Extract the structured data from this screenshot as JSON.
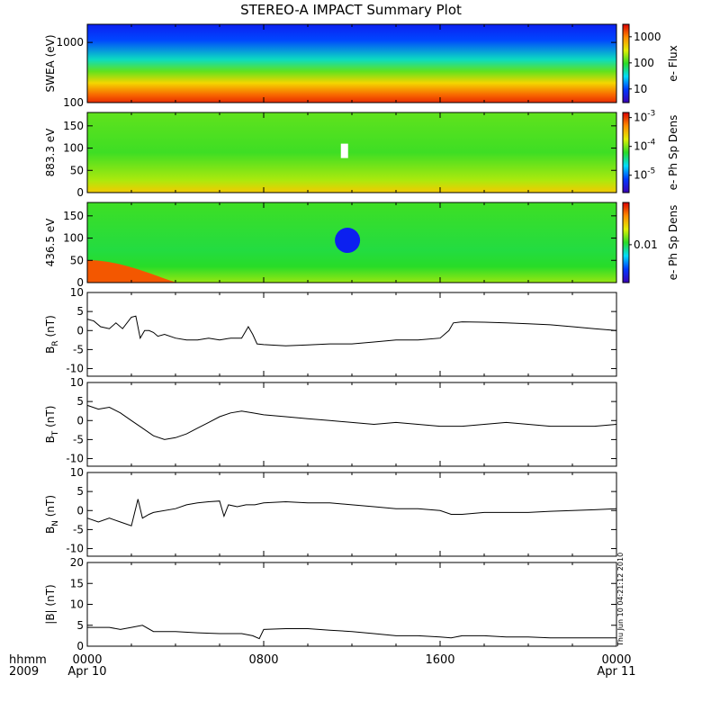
{
  "title": "STEREO-A IMPACT Summary Plot",
  "footer": {
    "time_label": "hhmm",
    "year_label": "2009"
  },
  "timestamp": "Thu Jun 10 04:21:12 2010",
  "colors": {
    "line": "#000000",
    "frame": "#000000",
    "background": "#ffffff"
  },
  "chart_data": [
    {
      "type": "heatmap",
      "panel": "swea",
      "ylabel": "SWEA (eV)",
      "y_scale": "log",
      "ylim": [
        100,
        2000
      ],
      "ytick_labels": [
        "1000",
        "100"
      ],
      "ytick_values": [
        1000,
        100
      ],
      "colorbar": {
        "label": "e- Flux",
        "scale": "log",
        "range": [
          3,
          3000
        ],
        "tick_labels": [
          "1000",
          "100",
          "10"
        ],
        "tick_values": [
          1000,
          100,
          10
        ]
      }
    },
    {
      "type": "heatmap",
      "panel": "pad_883",
      "ylabel": "883.3 eV",
      "ylim": [
        0,
        180
      ],
      "ytick_labels": [
        "150",
        "100",
        "50",
        "0"
      ],
      "ytick_values": [
        150,
        100,
        50,
        0
      ],
      "colorbar": {
        "label": "e- Ph Sp Dens",
        "scale": "log",
        "range": [
          2.5e-06,
          0.0015
        ],
        "tick_labels": [
          "10",
          "10",
          "10"
        ],
        "tick_exponents": [
          "-3",
          "-4",
          "-5"
        ],
        "tick_values": [
          0.001,
          0.0001,
          1e-05
        ]
      }
    },
    {
      "type": "heatmap",
      "panel": "pad_436",
      "ylabel": "436.5 eV",
      "ylim": [
        0,
        180
      ],
      "ytick_labels": [
        "150",
        "100",
        "50",
        "0"
      ],
      "ytick_values": [
        150,
        100,
        50,
        0
      ],
      "colorbar": {
        "label": "e- Ph Sp Dens",
        "scale": "log",
        "range": [
          0.002,
          0.06
        ],
        "tick_labels": [
          "0.01"
        ],
        "tick_values": [
          0.01
        ]
      }
    },
    {
      "type": "line",
      "panel": "br",
      "ylabel": "B",
      "ylabel_sub": "R",
      "ylabel_unit": "(nT)",
      "ylim": [
        -12,
        10
      ],
      "ytick_labels": [
        "10",
        "5",
        "0",
        "-5",
        "-10"
      ],
      "ytick_values": [
        10,
        5,
        0,
        -5,
        -10
      ],
      "x": [
        0,
        0.3,
        0.6,
        1,
        1.3,
        1.6,
        2,
        2.2,
        2.4,
        2.6,
        2.8,
        3,
        3.2,
        3.5,
        4,
        4.5,
        5,
        5.5,
        6,
        6.5,
        7,
        7.3,
        7.5,
        7.7,
        8,
        9,
        10,
        11,
        12,
        13,
        14,
        15,
        16,
        16.4,
        16.6,
        17,
        18,
        19,
        20,
        21,
        22,
        23,
        24
      ],
      "y": [
        3,
        2.5,
        1,
        0.5,
        2,
        0.5,
        3.5,
        3.8,
        -2,
        0,
        0,
        -0.5,
        -1.5,
        -1,
        -2,
        -2.5,
        -2.5,
        -2,
        -2.5,
        -2,
        -2,
        1,
        -1,
        -3.5,
        -3.7,
        -4,
        -3.8,
        -3.5,
        -3.5,
        -3,
        -2.5,
        -2.5,
        -2,
        0,
        2,
        2.3,
        2.2,
        2,
        1.8,
        1.5,
        1,
        0.5,
        0
      ]
    },
    {
      "type": "line",
      "panel": "bt",
      "ylabel": "B",
      "ylabel_sub": "T",
      "ylabel_unit": "(nT)",
      "ylim": [
        -12,
        10
      ],
      "ytick_labels": [
        "10",
        "5",
        "0",
        "-5",
        "-10"
      ],
      "ytick_values": [
        10,
        5,
        0,
        -5,
        -10
      ],
      "x": [
        0,
        0.5,
        1,
        1.5,
        2,
        2.5,
        3,
        3.5,
        4,
        4.5,
        5,
        5.5,
        6,
        6.5,
        7,
        7.5,
        8,
        9,
        10,
        11,
        12,
        13,
        14,
        15,
        16,
        17,
        18,
        19,
        20,
        21,
        22,
        23,
        24
      ],
      "y": [
        4,
        3,
        3.5,
        2,
        0,
        -2,
        -4,
        -5,
        -4.5,
        -3.5,
        -2,
        -0.5,
        1,
        2,
        2.5,
        2,
        1.5,
        1,
        0.5,
        0,
        -0.5,
        -1,
        -0.5,
        -1,
        -1.5,
        -1.5,
        -1,
        -0.5,
        -1,
        -1.5,
        -1.5,
        -1.5,
        -1
      ]
    },
    {
      "type": "line",
      "panel": "bn",
      "ylabel": "B",
      "ylabel_sub": "N",
      "ylabel_unit": "(nT)",
      "ylim": [
        -12,
        10
      ],
      "ytick_labels": [
        "10",
        "5",
        "0",
        "-5",
        "-10"
      ],
      "ytick_values": [
        10,
        5,
        0,
        -5,
        -10
      ],
      "x": [
        0,
        0.5,
        1,
        1.5,
        2,
        2.3,
        2.5,
        2.8,
        3,
        4,
        4.5,
        5,
        5.5,
        6,
        6.2,
        6.4,
        6.8,
        7.2,
        7.6,
        8,
        9,
        10,
        11,
        12,
        13,
        14,
        15,
        16,
        16.5,
        17,
        18,
        19,
        20,
        21,
        22,
        23,
        24
      ],
      "y": [
        -2,
        -3,
        -2,
        -3,
        -4,
        3,
        -2,
        -1,
        -0.5,
        0.5,
        1.5,
        2,
        2.3,
        2.5,
        -1.5,
        1.5,
        1,
        1.5,
        1.5,
        2,
        2.3,
        2,
        2,
        1.5,
        1,
        0.5,
        0.5,
        0,
        -1,
        -1,
        -0.5,
        -0.5,
        -0.5,
        -0.2,
        0,
        0.2,
        0.5
      ]
    },
    {
      "type": "line",
      "panel": "bmag",
      "ylabel": "|B| (nT)",
      "ylim": [
        0,
        20
      ],
      "ytick_labels": [
        "20",
        "15",
        "10",
        "5",
        "0"
      ],
      "ytick_values": [
        20,
        15,
        10,
        5,
        0
      ],
      "x": [
        0,
        1,
        1.5,
        2,
        2.5,
        3,
        4,
        5,
        6,
        7,
        7.5,
        7.8,
        8,
        9,
        10,
        11,
        12,
        13,
        14,
        15,
        16,
        16.5,
        17,
        18,
        19,
        20,
        21,
        22,
        23,
        24
      ],
      "y": [
        4.5,
        4.5,
        4,
        4.5,
        5,
        3.5,
        3.5,
        3.2,
        3,
        3,
        2.5,
        1.8,
        4,
        4.2,
        4.2,
        3.8,
        3.5,
        3,
        2.5,
        2.5,
        2.2,
        2,
        2.5,
        2.5,
        2.2,
        2.2,
        2,
        2,
        2,
        2
      ]
    }
  ],
  "x_axis": {
    "range": [
      0,
      24
    ],
    "ticks": [
      {
        "value": 0,
        "label": "0000",
        "sublabel": "Apr 10"
      },
      {
        "value": 8,
        "label": "0800",
        "sublabel": ""
      },
      {
        "value": 16,
        "label": "1600",
        "sublabel": ""
      },
      {
        "value": 24,
        "label": "0000",
        "sublabel": "Apr 11"
      }
    ]
  }
}
